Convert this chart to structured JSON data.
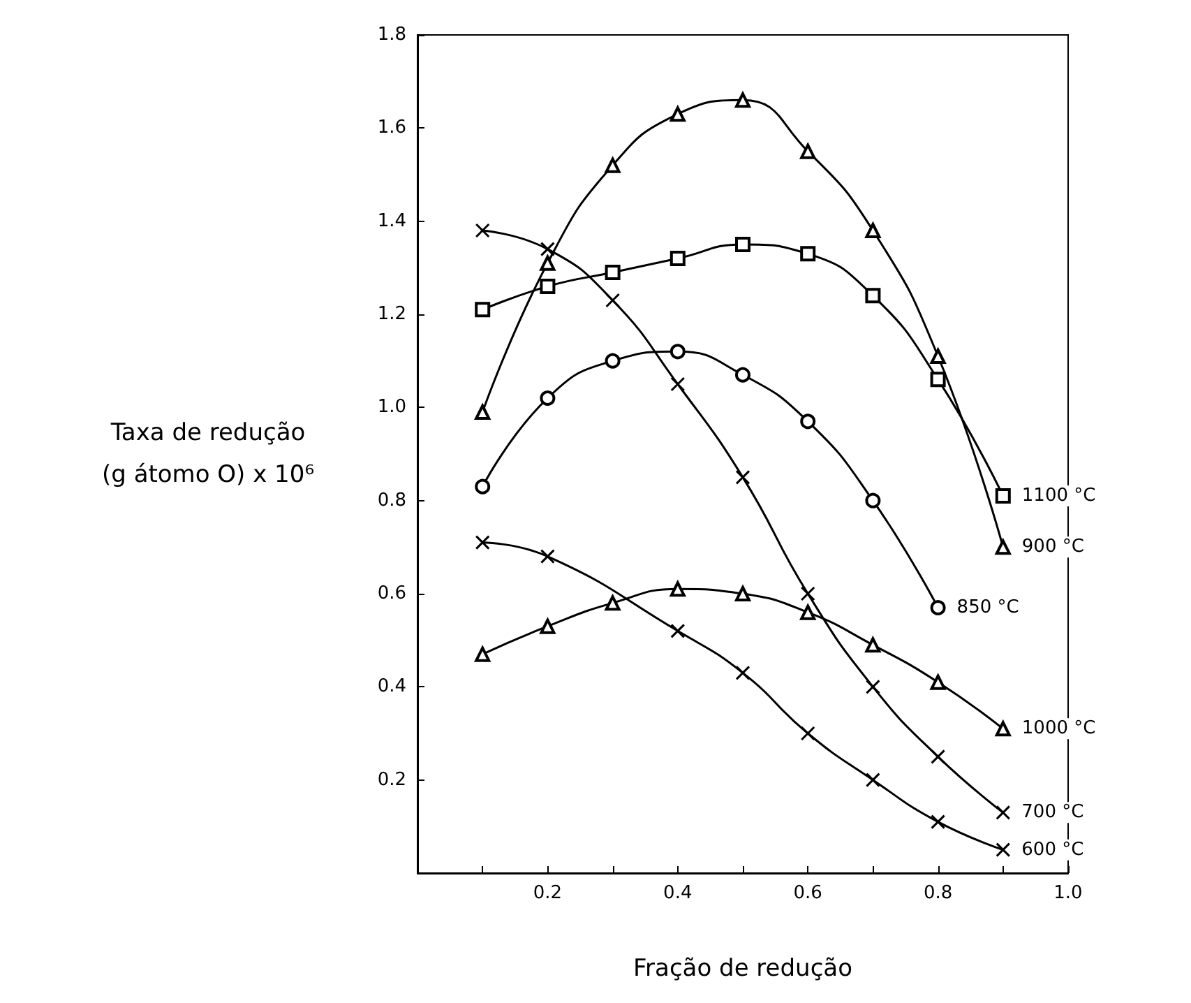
{
  "chart_data": {
    "type": "line",
    "xlabel": "Fração de redução",
    "ylabel": "Taxa de redução\n(g átomo O) x 10⁶",
    "x": [
      0.1,
      0.2,
      0.3,
      0.4,
      0.5,
      0.6,
      0.7,
      0.8,
      0.9
    ],
    "series": [
      {
        "name": "900 °C",
        "color": "#000000",
        "marker": "triangle",
        "values": [
          0.99,
          1.31,
          1.52,
          1.63,
          1.66,
          1.55,
          1.38,
          1.11,
          0.7
        ]
      },
      {
        "name": "1100 °C",
        "color": "#000000",
        "marker": "square",
        "values": [
          1.21,
          1.26,
          1.29,
          1.32,
          1.35,
          1.33,
          1.24,
          1.06,
          0.81
        ]
      },
      {
        "name": "850 °C",
        "color": "#000000",
        "marker": "circle",
        "values": [
          0.83,
          1.02,
          1.1,
          1.12,
          1.07,
          0.97,
          0.8,
          0.57,
          null
        ]
      },
      {
        "name": "700 °C",
        "color": "#000000",
        "marker": "cross",
        "values": [
          1.38,
          1.34,
          1.23,
          1.05,
          0.85,
          0.6,
          0.4,
          0.25,
          0.13
        ]
      },
      {
        "name": "600 °C",
        "color": "#000000",
        "marker": "cross",
        "values": [
          0.71,
          0.68,
          null,
          0.52,
          0.43,
          0.3,
          0.2,
          0.11,
          0.05
        ]
      },
      {
        "name": "1000 °C",
        "color": "#000000",
        "marker": "triangle",
        "values": [
          0.47,
          0.53,
          0.58,
          0.61,
          0.6,
          0.56,
          0.49,
          0.41,
          0.31
        ]
      }
    ],
    "xlim": [
      0,
      1
    ],
    "ylim": [
      0,
      1.8
    ],
    "xticks": [
      {
        "value": 0.1,
        "label": null
      },
      0.2,
      {
        "value": 0.3,
        "label": null
      },
      0.4,
      {
        "value": 0.5,
        "label": null
      },
      0.6,
      {
        "value": 0.7,
        "label": null
      },
      0.8,
      {
        "value": 0.9,
        "label": null
      },
      {
        "value": 1,
        "label": "1.0"
      }
    ],
    "yticks": [
      0.2,
      0.4,
      0.6,
      0.8,
      {
        "value": 1,
        "label": "1.0"
      },
      1.2,
      1.4,
      1.6,
      1.8
    ],
    "grid": false,
    "legend": false
  }
}
